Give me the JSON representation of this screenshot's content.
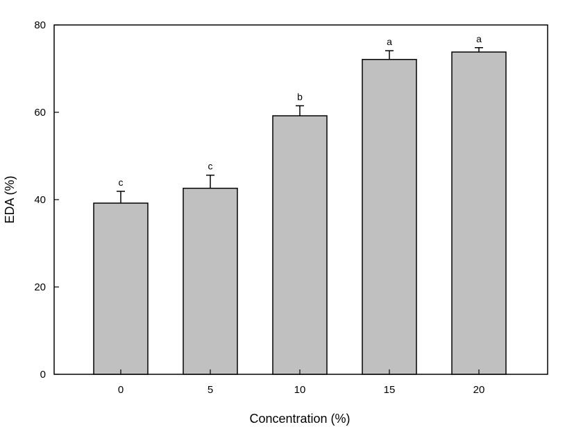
{
  "chart_data": {
    "type": "bar",
    "title": "",
    "xlabel": "Concentration (%)",
    "ylabel": "EDA (%)",
    "categories": [
      "0",
      "5",
      "10",
      "15",
      "20"
    ],
    "values": [
      39.2,
      42.6,
      59.2,
      72.1,
      73.8
    ],
    "errors": [
      2.7,
      3.0,
      2.3,
      2.0,
      1.0
    ],
    "significance": [
      "c",
      "c",
      "b",
      "a",
      "a"
    ],
    "ylim": [
      0,
      80
    ],
    "yticks": [
      "0",
      "20",
      "40",
      "60",
      "80"
    ],
    "grid": false,
    "legend": "none",
    "bar_color": "#c0c0c0"
  }
}
